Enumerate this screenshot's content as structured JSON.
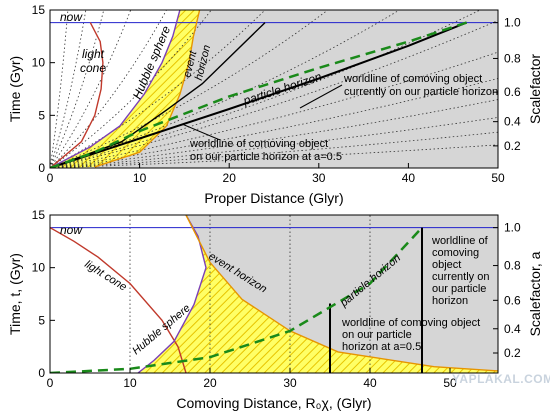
{
  "chart_data": [
    {
      "type": "line",
      "xlabel": "Proper Distance (Glyr)",
      "ylabel": "Time (Gyr)",
      "y2label": "Scalefactor",
      "xlim": [
        0,
        50
      ],
      "ylim": [
        0,
        15
      ],
      "x_ticks": [
        0,
        10,
        20,
        30,
        40,
        50
      ],
      "y_ticks": [
        0,
        5,
        10,
        15
      ],
      "y2_ticks": [
        {
          "label": "0.2",
          "t": 2.1
        },
        {
          "label": "0.4",
          "t": 4.4
        },
        {
          "label": "0.6",
          "t": 7.2
        },
        {
          "label": "0.8",
          "t": 10.4
        },
        {
          "label": "1.0",
          "t": 13.8
        }
      ],
      "now_t": 13.8,
      "now_label": "now",
      "labels": {
        "light_cone": "light\ncone",
        "hubble_sphere": "Hubble sphere",
        "event_horizon": "event\nhorizon",
        "particle_horizon": "particle horizon",
        "worldline_now": "worldline of comoving object\ncurrently on our particle horizon",
        "worldline_half": "worldline of comoving object\non our particle horizon at a=0.5"
      },
      "series": [
        {
          "id": "light_cone",
          "x": [
            0,
            3.5,
            5.0,
            5.7,
            5.9,
            5.6,
            4.5
          ],
          "t": [
            0,
            2.5,
            5.0,
            7.5,
            10.0,
            12.0,
            13.8
          ]
        },
        {
          "id": "hubble_sphere",
          "x": [
            0,
            4.5,
            7.8,
            10.5,
            12.5,
            13.7,
            14.5
          ],
          "t": [
            0,
            2.0,
            4.0,
            7.0,
            10.0,
            12.5,
            15.0
          ]
        },
        {
          "id": "event_horizon",
          "x": [
            5,
            10,
            13,
            14.5,
            15.5,
            16.0,
            16.7
          ],
          "t": [
            0.1,
            1.5,
            4.0,
            7.0,
            10.0,
            12.5,
            15.0
          ]
        },
        {
          "id": "particle_horizon",
          "x": [
            0,
            5,
            10,
            20,
            30,
            40,
            46.5
          ],
          "t": [
            0,
            1.5,
            3.5,
            6.8,
            9.5,
            12.0,
            13.8
          ]
        },
        {
          "id": "worldline_now",
          "x": [
            0,
            10,
            20,
            30,
            40,
            46.5
          ],
          "t": [
            0,
            2.8,
            5.6,
            8.5,
            11.6,
            13.8
          ]
        },
        {
          "id": "worldline_half",
          "x": [
            0,
            8,
            13,
            17,
            24
          ],
          "t": [
            0,
            2.5,
            5.5,
            8.0,
            13.8
          ]
        }
      ]
    },
    {
      "type": "line",
      "xlabel": "Comoving Distance, R₀χ, (Glyr)",
      "ylabel": "Time, t, (Gyr)",
      "y2label": "Scalefactor, a",
      "xlim": [
        0,
        56
      ],
      "ylim": [
        0,
        15
      ],
      "x_ticks": [
        0,
        10,
        20,
        30,
        40,
        50
      ],
      "y_ticks": [
        0,
        5,
        10,
        15
      ],
      "y2_ticks": [
        {
          "label": "0.2",
          "t": 1.9
        },
        {
          "label": "0.4",
          "t": 4.2
        },
        {
          "label": "0.6",
          "t": 6.9
        },
        {
          "label": "0.8",
          "t": 10.2
        },
        {
          "label": "1.0",
          "t": 13.8
        }
      ],
      "now_t": 13.8,
      "now_label": "now",
      "labels": {
        "light_cone": "light cone",
        "hubble_sphere": "Hubble sphere",
        "event_horizon": "event horizon",
        "particle_horizon": "particle horizon",
        "worldline_now": "worldline of\ncomoving\nobject\ncurrently on\nour particle\nhorizon",
        "worldline_half": "worldline of comoving object\non our particle\nhorizon at a=0.5"
      },
      "series": [
        {
          "id": "light_cone",
          "x": [
            0,
            3,
            6,
            10,
            14,
            16,
            17
          ],
          "t": [
            13.8,
            12.5,
            11.0,
            8.5,
            5.0,
            2.5,
            0
          ]
        },
        {
          "id": "hubble_sphere",
          "x": [
            11,
            13,
            15.5,
            18,
            19.5,
            18.5,
            17
          ],
          "t": [
            0,
            1.2,
            3.0,
            6.5,
            10.0,
            13.0,
            15.0
          ]
        },
        {
          "id": "event_horizon",
          "x": [
            17,
            20,
            24,
            30,
            36,
            48,
            60
          ],
          "t": [
            15.0,
            10.5,
            7.0,
            4.0,
            2.0,
            0.6,
            0
          ]
        },
        {
          "id": "particle_horizon",
          "x": [
            0,
            10,
            20,
            30,
            40,
            46.5
          ],
          "t": [
            0,
            0.4,
            1.5,
            4.0,
            8.5,
            13.8
          ]
        },
        {
          "id": "worldline_now",
          "x": [
            46.5,
            46.5
          ],
          "t": [
            0,
            13.8
          ]
        },
        {
          "id": "worldline_half",
          "x": [
            35,
            35
          ],
          "t": [
            0,
            6.6
          ]
        }
      ]
    }
  ],
  "watermark": "YAPLAKAL.COM"
}
